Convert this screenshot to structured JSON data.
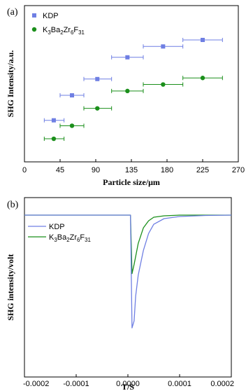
{
  "colors": {
    "kdp": "#6f7fe3",
    "k3": "#1b8f1b",
    "axis": "#000000"
  },
  "chart_data": [
    {
      "panel_label": "(a)",
      "type": "scatter",
      "xlabel": "Particle size/μm",
      "ylabel": "SHG Intensity/a.u.",
      "xlim": [
        0,
        270
      ],
      "xticks": [
        "0",
        "45",
        "90",
        "135",
        "180",
        "225",
        "270"
      ],
      "legend_position": "top-left",
      "series": [
        {
          "name": "KDP",
          "name_parts": [
            "KDP"
          ],
          "marker": "square",
          "color": "#6f7fe3",
          "points": [
            {
              "x": 37,
              "xerr": [
                25,
                50
              ],
              "y": 0.26
            },
            {
              "x": 60,
              "xerr": [
                45,
                75
              ],
              "y": 0.49
            },
            {
              "x": 92,
              "xerr": [
                75,
                110
              ],
              "y": 0.64
            },
            {
              "x": 130,
              "xerr": [
                110,
                150
              ],
              "y": 0.84
            },
            {
              "x": 175,
              "xerr": [
                150,
                200
              ],
              "y": 0.94
            },
            {
              "x": 225,
              "xerr": [
                200,
                250
              ],
              "y": 1.0
            }
          ]
        },
        {
          "name": "K3Ba2Zr6F31",
          "name_parts": [
            "K",
            "3",
            "Ba",
            "2",
            "Zr",
            "6",
            "F",
            "31"
          ],
          "marker": "circle",
          "color": "#1b8f1b",
          "points": [
            {
              "x": 37,
              "xerr": [
                25,
                50
              ],
              "y": 0.09
            },
            {
              "x": 60,
              "xerr": [
                45,
                75
              ],
              "y": 0.21
            },
            {
              "x": 92,
              "xerr": [
                75,
                110
              ],
              "y": 0.37
            },
            {
              "x": 130,
              "xerr": [
                110,
                150
              ],
              "y": 0.53
            },
            {
              "x": 175,
              "xerr": [
                150,
                200
              ],
              "y": 0.59
            },
            {
              "x": 225,
              "xerr": [
                200,
                250
              ],
              "y": 0.65
            }
          ]
        }
      ]
    },
    {
      "panel_label": "(b)",
      "type": "line",
      "xlabel": "T/S",
      "ylabel": "SHG intensity/volt",
      "xlim": [
        -0.0002,
        0.0002
      ],
      "xticks": [
        "-0.0002",
        "-0.0001",
        "0.0000",
        "0.0001",
        "0.0002"
      ],
      "legend_position": "top-left",
      "series": [
        {
          "name": "KDP",
          "name_parts": [
            "KDP"
          ],
          "color": "#6f7fe3",
          "x": [
            -0.0002,
            5e-06,
            8e-06,
            1.2e-05,
            1.5e-05,
            2e-05,
            3e-05,
            4e-05,
            5e-05,
            7e-05,
            0.0001,
            0.00015,
            0.0002
          ],
          "y": [
            1.0,
            1.0,
            -0.6,
            -0.5,
            -0.15,
            0.15,
            0.5,
            0.74,
            0.87,
            0.95,
            0.98,
            0.995,
            1.0
          ]
        },
        {
          "name": "K3Ba2Zr6F31",
          "name_parts": [
            "K",
            "3",
            "Ba",
            "2",
            "Zr",
            "6",
            "F",
            "31"
          ],
          "color": "#1b8f1b",
          "x": [
            -0.0002,
            5e-06,
            8e-06,
            1.2e-05,
            2e-05,
            3e-05,
            4e-05,
            5e-05,
            7e-05,
            0.0001,
            0.00015,
            0.0002
          ],
          "y": [
            1.0,
            1.0,
            0.17,
            0.3,
            0.6,
            0.82,
            0.92,
            0.97,
            0.99,
            1.0,
            1.0,
            1.0
          ]
        }
      ]
    }
  ]
}
